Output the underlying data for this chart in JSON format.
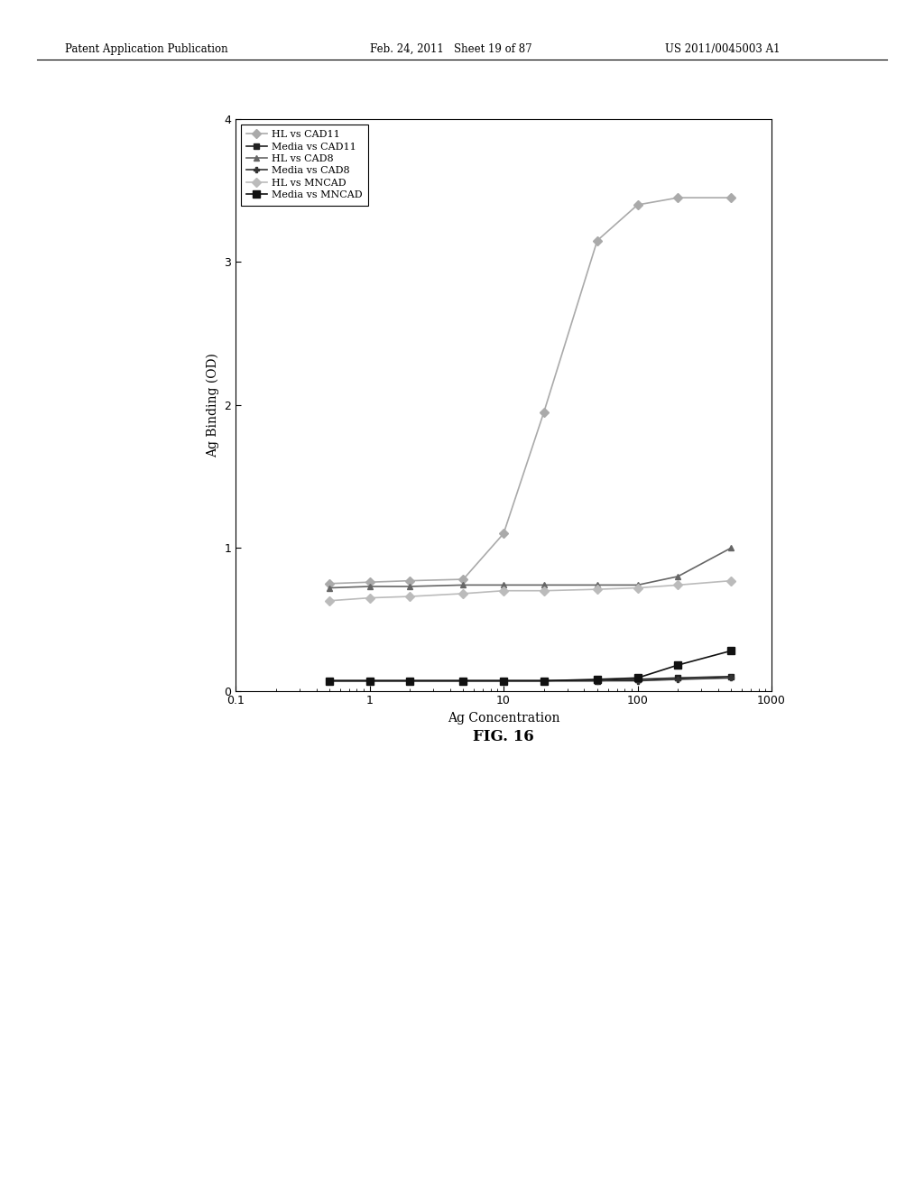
{
  "title": "FIG. 16",
  "xlabel": "Ag Concentration",
  "ylabel": "Ag Binding (OD)",
  "xlim": [
    0.1,
    1000
  ],
  "ylim": [
    0,
    4
  ],
  "yticks": [
    0,
    1,
    2,
    3,
    4
  ],
  "header_left": "Patent Application Publication",
  "header_mid": "Feb. 24, 2011   Sheet 19 of 87",
  "header_right": "US 2011/0045003 A1",
  "bg_color": "#e8e8e8",
  "series": [
    {
      "label": "HL vs CAD11",
      "x": [
        0.5,
        1.0,
        2.0,
        5.0,
        10.0,
        20.0,
        50.0,
        100.0,
        200.0,
        500.0
      ],
      "y": [
        0.75,
        0.76,
        0.77,
        0.78,
        1.1,
        1.95,
        3.15,
        3.4,
        3.45,
        3.45
      ],
      "color": "#aaaaaa",
      "linestyle": "-",
      "marker": "D",
      "markersize": 5,
      "linewidth": 1.2
    },
    {
      "label": "Media vs CAD11",
      "x": [
        0.5,
        1.0,
        2.0,
        5.0,
        10.0,
        20.0,
        50.0,
        100.0,
        200.0,
        500.0
      ],
      "y": [
        0.07,
        0.07,
        0.07,
        0.07,
        0.07,
        0.07,
        0.07,
        0.08,
        0.09,
        0.1
      ],
      "color": "#222222",
      "linestyle": "-",
      "marker": "s",
      "markersize": 5,
      "linewidth": 1.2
    },
    {
      "label": "HL vs CAD8",
      "x": [
        0.5,
        1.0,
        2.0,
        5.0,
        10.0,
        20.0,
        50.0,
        100.0,
        200.0,
        500.0
      ],
      "y": [
        0.72,
        0.73,
        0.73,
        0.74,
        0.74,
        0.74,
        0.74,
        0.74,
        0.8,
        1.0
      ],
      "color": "#666666",
      "linestyle": "-",
      "marker": "^",
      "markersize": 5,
      "linewidth": 1.2
    },
    {
      "label": "Media vs CAD8",
      "x": [
        0.5,
        1.0,
        2.0,
        5.0,
        10.0,
        20.0,
        50.0,
        100.0,
        200.0,
        500.0
      ],
      "y": [
        0.07,
        0.07,
        0.07,
        0.07,
        0.07,
        0.07,
        0.07,
        0.07,
        0.08,
        0.09
      ],
      "color": "#333333",
      "linestyle": "-",
      "marker": "P",
      "markersize": 5,
      "linewidth": 1.2
    },
    {
      "label": "HL vs MNCAD",
      "x": [
        0.5,
        1.0,
        2.0,
        5.0,
        10.0,
        20.0,
        50.0,
        100.0,
        200.0,
        500.0
      ],
      "y": [
        0.63,
        0.65,
        0.66,
        0.68,
        0.7,
        0.7,
        0.71,
        0.72,
        0.74,
        0.77
      ],
      "color": "#bbbbbb",
      "linestyle": "-",
      "marker": "D",
      "markersize": 5,
      "linewidth": 1.2
    },
    {
      "label": "Media vs MNCAD",
      "x": [
        0.5,
        1.0,
        2.0,
        5.0,
        10.0,
        20.0,
        50.0,
        100.0,
        200.0,
        500.0
      ],
      "y": [
        0.07,
        0.07,
        0.07,
        0.07,
        0.07,
        0.07,
        0.08,
        0.09,
        0.18,
        0.28
      ],
      "color": "#111111",
      "linestyle": "-",
      "marker": "s",
      "markersize": 6,
      "linewidth": 1.2
    }
  ]
}
